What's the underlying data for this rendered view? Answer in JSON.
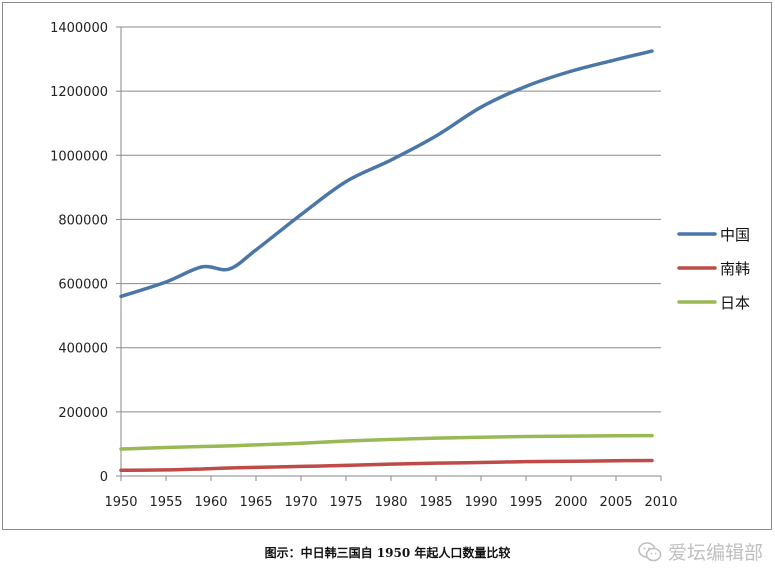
{
  "chart_data": {
    "type": "line",
    "title": "",
    "xlabel": "",
    "ylabel": "",
    "x": [
      1950,
      1955,
      1959,
      1962,
      1965,
      1970,
      1975,
      1980,
      1985,
      1990,
      1995,
      2000,
      2005,
      2009
    ],
    "x_ticks": [
      "1950",
      "1955",
      "1960",
      "1965",
      "1970",
      "1975",
      "1980",
      "1985",
      "1990",
      "1995",
      "2000",
      "2005",
      "2010"
    ],
    "xlim": [
      1950,
      2010
    ],
    "y_ticks": [
      "0",
      "200000",
      "400000",
      "600000",
      "800000",
      "1000000",
      "1200000",
      "1400000"
    ],
    "ylim": [
      0,
      1400000
    ],
    "grid": "horizontal",
    "legend_position": "right",
    "series": [
      {
        "name": "中国",
        "color": "#4a76a8",
        "values": [
          560000,
          605000,
          652000,
          645000,
          705000,
          815000,
          918000,
          985000,
          1060000,
          1150000,
          1215000,
          1262000,
          1298000,
          1325000
        ]
      },
      {
        "name": "南韩",
        "color": "#be4b48",
        "values": [
          18000,
          19000,
          22000,
          25000,
          27000,
          30000,
          33000,
          37000,
          40000,
          42000,
          45000,
          46000,
          47500,
          48500
        ]
      },
      {
        "name": "日本",
        "color": "#98b954",
        "values": [
          84000,
          89000,
          92000,
          94000,
          97000,
          102000,
          109000,
          114000,
          118000,
          121000,
          123000,
          124500,
          125500,
          126000
        ]
      }
    ]
  },
  "caption": "图示：中日韩三国自 1950 年起人口数量比较",
  "watermark": "爱坛编辑部"
}
